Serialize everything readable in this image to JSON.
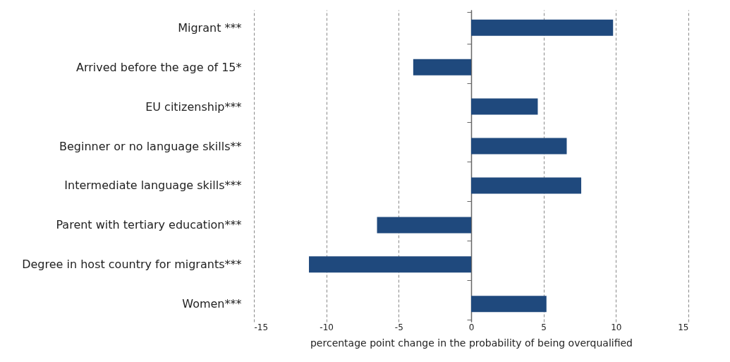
{
  "chart_data": {
    "type": "bar",
    "orientation": "horizontal",
    "categories": [
      "Migrant ***",
      "Arrived before the age of 15*",
      "EU citizenship***",
      "Beginner or no language skills**",
      "Intermediate language skills***",
      "Parent with tertiary education***",
      "Degree in host country for migrants***",
      "Women***"
    ],
    "values": [
      9.8,
      -4.0,
      4.6,
      6.6,
      7.6,
      -6.5,
      -11.2,
      5.2
    ],
    "color": "#1f497d",
    "xlim": [
      -15,
      15
    ],
    "xticks": [
      -15,
      -10,
      -5,
      0,
      5,
      10,
      15
    ],
    "xlabel": "percentage point change in the probability of being overqualified",
    "grid": "x"
  }
}
